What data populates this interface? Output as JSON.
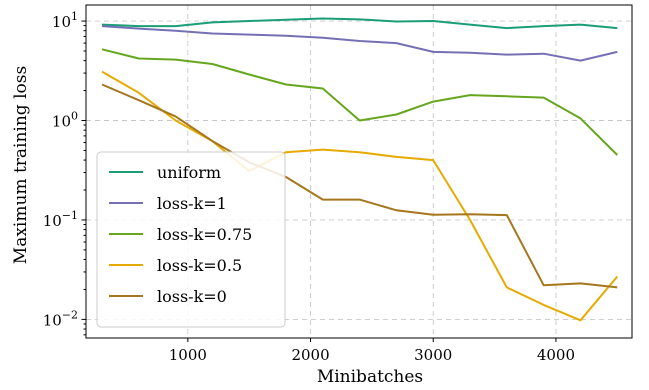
{
  "chart_data": {
    "type": "line",
    "xlabel": "Minibatches",
    "ylabel": "Maximum training loss",
    "xlim": [
      170,
      4620
    ],
    "ylim": [
      0.0065,
      14.5
    ],
    "yscale": "log",
    "grid": true,
    "legend_position": "lower-left",
    "x_ticks": [
      {
        "value": 1000,
        "label": "1000"
      },
      {
        "value": 2000,
        "label": "2000"
      },
      {
        "value": 3000,
        "label": "3000"
      },
      {
        "value": 4000,
        "label": "4000"
      }
    ],
    "y_ticks": [
      {
        "value": 0.01,
        "base": "10",
        "exp": "−2"
      },
      {
        "value": 0.1,
        "base": "10",
        "exp": "−1"
      },
      {
        "value": 1,
        "base": "10",
        "exp": "0"
      },
      {
        "value": 10,
        "base": "10",
        "exp": "1"
      }
    ],
    "series": [
      {
        "name": "uniform",
        "color": "#1b9e77",
        "x": [
          300,
          600,
          900,
          1200,
          1500,
          1800,
          2100,
          2400,
          2700,
          3000,
          3300,
          3600,
          3900,
          4200,
          4500
        ],
        "y": [
          9.2,
          8.9,
          8.9,
          9.7,
          10.0,
          10.3,
          10.6,
          10.4,
          9.9,
          10.0,
          9.2,
          8.5,
          8.9,
          9.2,
          8.5
        ]
      },
      {
        "name": "loss-k=1",
        "color": "#7570b3",
        "x": [
          300,
          600,
          900,
          1200,
          1500,
          1800,
          2100,
          2400,
          2700,
          3000,
          3300,
          3600,
          3900,
          4200,
          4500
        ],
        "y": [
          8.9,
          8.4,
          8.0,
          7.5,
          7.3,
          7.1,
          6.8,
          6.3,
          6.0,
          4.9,
          4.8,
          4.6,
          4.7,
          4.0,
          4.9
        ]
      },
      {
        "name": "loss-k=0.75",
        "color": "#66a61e",
        "x": [
          300,
          600,
          900,
          1200,
          1500,
          1800,
          2100,
          2400,
          2700,
          3000,
          3300,
          3600,
          3900,
          4200,
          4500
        ],
        "y": [
          5.2,
          4.2,
          4.1,
          3.7,
          2.9,
          2.3,
          2.1,
          1.0,
          1.15,
          1.55,
          1.8,
          1.75,
          1.7,
          1.05,
          0.45
        ]
      },
      {
        "name": "loss-k=0.5",
        "color": "#e6ab02",
        "x": [
          300,
          600,
          900,
          1200,
          1500,
          1800,
          2100,
          2400,
          2700,
          3000,
          3300,
          3600,
          3900,
          4200,
          4500
        ],
        "y": [
          3.1,
          1.9,
          1.0,
          0.62,
          0.31,
          0.48,
          0.51,
          0.48,
          0.43,
          0.4,
          0.1,
          0.021,
          0.014,
          0.0098,
          0.027
        ]
      },
      {
        "name": "loss-k=0",
        "color": "#a6761d",
        "x": [
          300,
          600,
          900,
          1200,
          1500,
          1800,
          2100,
          2400,
          2700,
          3000,
          3300,
          3600,
          3900,
          4200,
          4500
        ],
        "y": [
          2.3,
          1.6,
          1.1,
          0.62,
          0.38,
          0.27,
          0.16,
          0.16,
          0.125,
          0.113,
          0.114,
          0.112,
          0.022,
          0.023,
          0.021
        ]
      }
    ]
  }
}
